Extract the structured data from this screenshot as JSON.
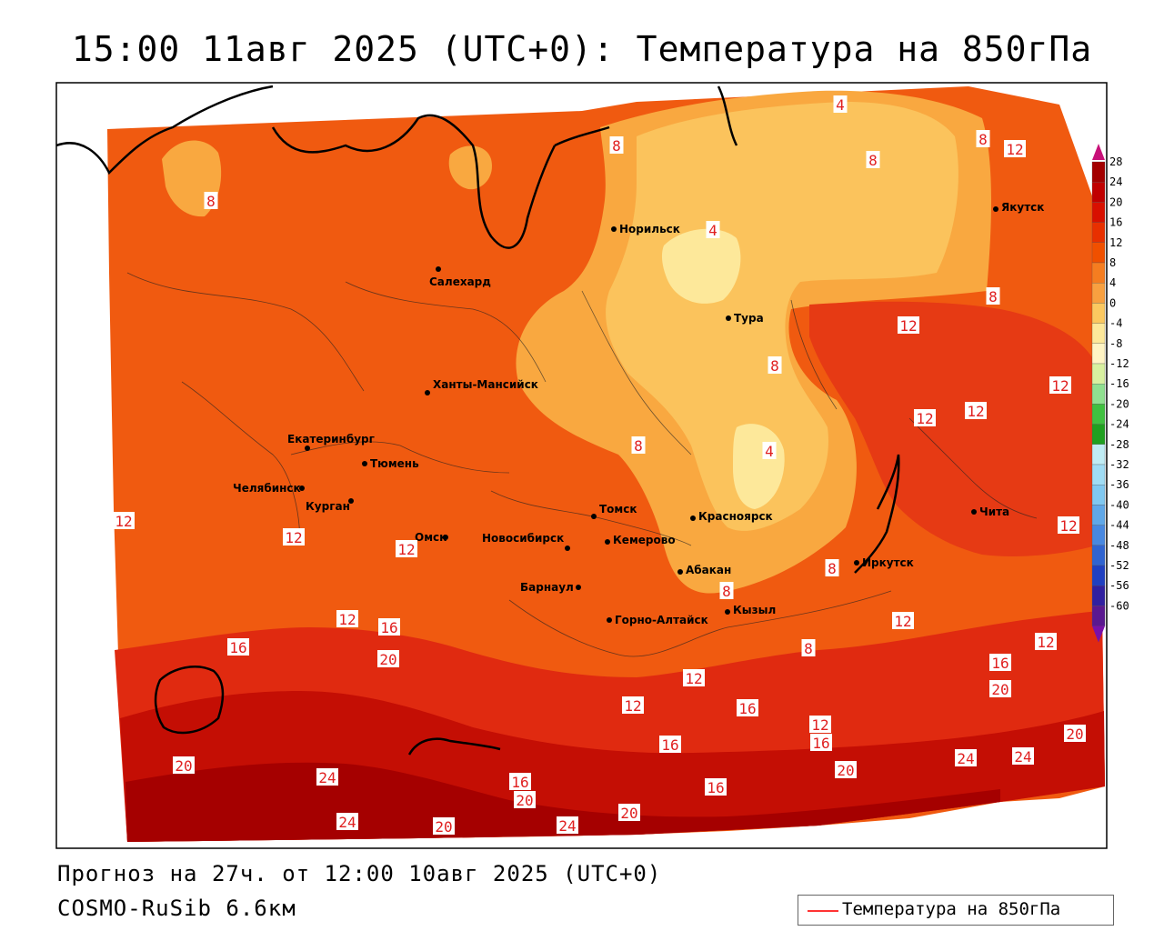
{
  "title": "15:00 11авг 2025 (UTC+0): Температура на 850гПа",
  "footer": {
    "forecast": "Прогноз на 27ч. от 12:00 10авг 2025 (UTC+0)",
    "model": "COSMO-RuSib 6.6км"
  },
  "legend": {
    "label": "Температура на 850гПа",
    "line_color": "#ff3333"
  },
  "colorbar": {
    "ticks": [
      "28",
      "24",
      "20",
      "16",
      "12",
      "8",
      "4",
      "0",
      "-4",
      "-8",
      "-12",
      "-16",
      "-20",
      "-24",
      "-28",
      "-32",
      "-36",
      "-40",
      "-44",
      "-48",
      "-52",
      "-56",
      "-60"
    ],
    "colors": [
      "#a30000",
      "#c00000",
      "#d81000",
      "#e83000",
      "#f05000",
      "#f57d20",
      "#f8a040",
      "#fbc860",
      "#fde89a",
      "#fff4c4",
      "#d8f0a0",
      "#90e090",
      "#40c040",
      "#20a020",
      "#c0ecf4",
      "#a0dcf4",
      "#80c8f0",
      "#60a8e8",
      "#4888e0",
      "#3064d0",
      "#2040c0",
      "#3020a0",
      "#5a1890"
    ]
  },
  "cities": [
    {
      "name": "Норильск"
    },
    {
      "name": "Якутск"
    },
    {
      "name": "Салехард"
    },
    {
      "name": "Тура"
    },
    {
      "name": "Ханты-Мансийск"
    },
    {
      "name": "Екатеринбург"
    },
    {
      "name": "Тюмень"
    },
    {
      "name": "Челябинск"
    },
    {
      "name": "Курган"
    },
    {
      "name": "Омск"
    },
    {
      "name": "Новосибирск"
    },
    {
      "name": "Томск"
    },
    {
      "name": "Кемерово"
    },
    {
      "name": "Красноярск"
    },
    {
      "name": "Барнаул"
    },
    {
      "name": "Абакан"
    },
    {
      "name": "Горно-Алтайск"
    },
    {
      "name": "Кызыл"
    },
    {
      "name": "Иркутск"
    },
    {
      "name": "Чита"
    }
  ],
  "contour_labels": [
    "4",
    "8",
    "12",
    "16",
    "20",
    "24"
  ]
}
